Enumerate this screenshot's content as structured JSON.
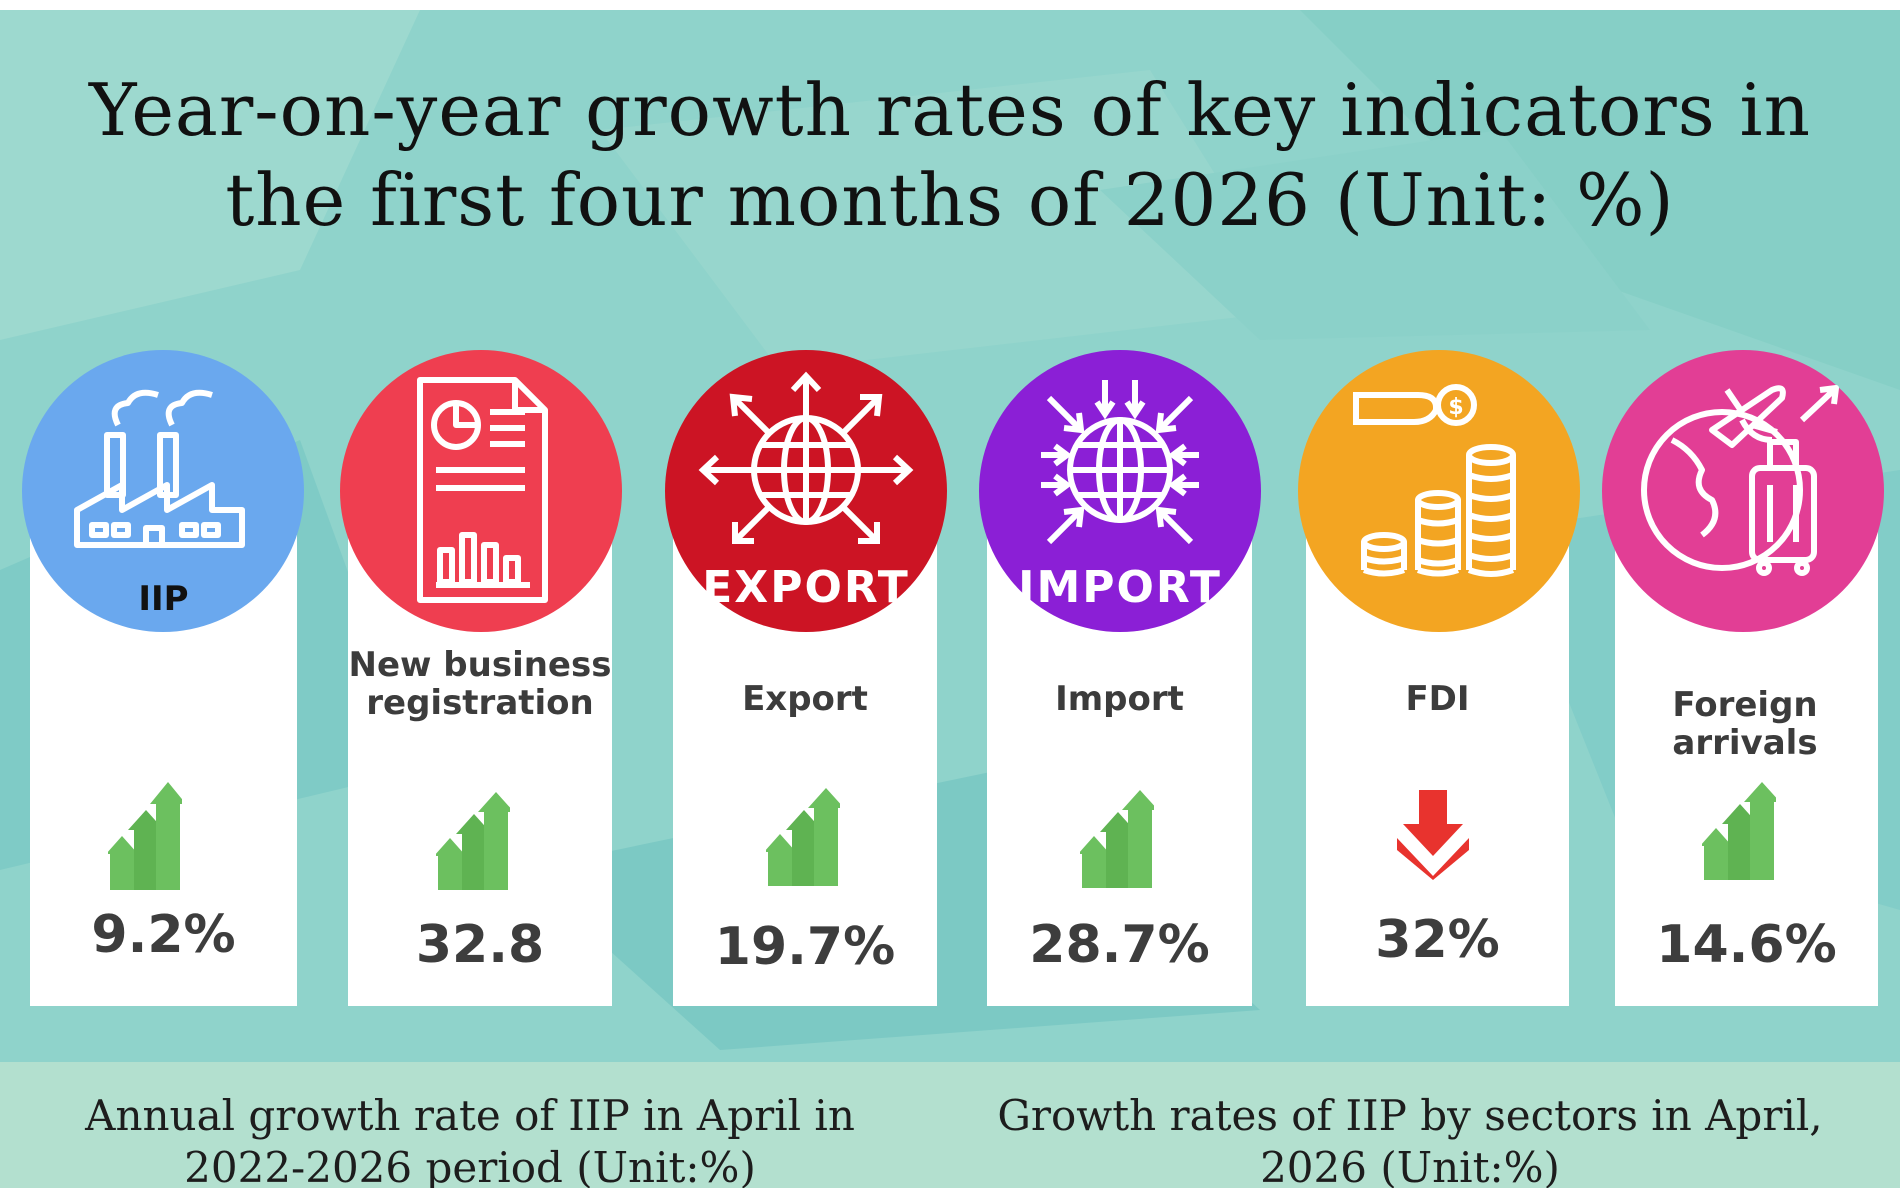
{
  "title": {
    "line1": "Year-on-year growth rates of  key indicators in",
    "line2": "the first four months of 2026 (Unit: %)"
  },
  "indicators": [
    {
      "label": "IIP",
      "value": "9.2%",
      "trend": "up",
      "icon": "factory-icon",
      "color": "#6aa8ee"
    },
    {
      "label": "New business registration",
      "value": "32.8",
      "trend": "up",
      "icon": "business-report-icon",
      "color": "#ef3e50"
    },
    {
      "label": "Export",
      "value": "19.7%",
      "trend": "up",
      "icon": "export-globe-icon",
      "color": "#cc1424",
      "badge": "EXPORT"
    },
    {
      "label": "Import",
      "value": "28.7%",
      "trend": "up",
      "icon": "import-globe-icon",
      "color": "#8b1fd6",
      "badge": "IMPORT"
    },
    {
      "label": "FDI",
      "value": "32%",
      "trend": "down",
      "icon": "coins-hand-icon",
      "color": "#f3a522"
    },
    {
      "label": "Foreign arrivals",
      "value": "14.6%",
      "trend": "up",
      "icon": "travel-globe-icon",
      "color": "#e23e95"
    }
  ],
  "subtitles": {
    "left_line1": "Annual growth rate of IIP in April in",
    "left_line2": "2022-2026 period  (Unit:%)",
    "right_line1": "Growth rates of IIP by sectors in April,",
    "right_line2": "2026 (Unit:%)"
  },
  "colors": {
    "background": "#8fd3cb",
    "card": "#ffffff",
    "trend_up": "#6cc05f",
    "trend_down": "#e8332e",
    "bottom_band": "#b3e0cf"
  }
}
